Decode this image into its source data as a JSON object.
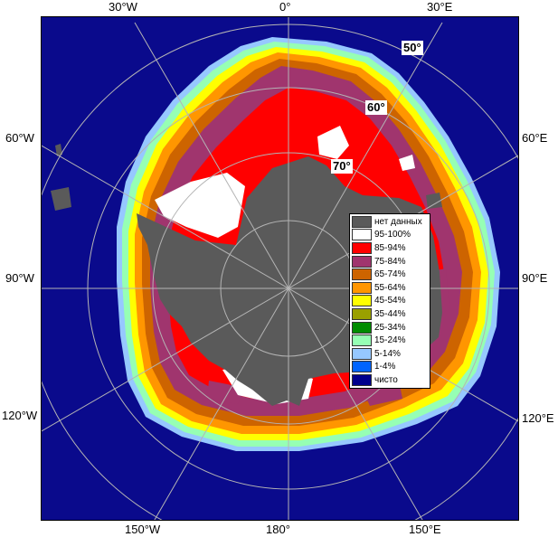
{
  "map": {
    "longitude_labels": {
      "top": [
        "30°W",
        "0°",
        "30°E"
      ],
      "left": [
        "60°W",
        "90°W",
        "120°W"
      ],
      "right": [
        "60°E",
        "90°E",
        "120°E"
      ],
      "bottom": [
        "150°W",
        "180°",
        "150°E"
      ]
    },
    "latitude_labels": [
      "50°",
      "60°",
      "70°"
    ],
    "colors": {
      "ocean": "#0a0a8c",
      "land": "#5a5a5a",
      "grid": "#b4b4b4"
    }
  },
  "legend": {
    "items": [
      {
        "label": "нет данных",
        "color": "#5a5a5a"
      },
      {
        "label": "95-100%",
        "color": "#ffffff"
      },
      {
        "label": "85-94%",
        "color": "#ff0000"
      },
      {
        "label": "75-84%",
        "color": "#a0356e"
      },
      {
        "label": "65-74%",
        "color": "#cd6400"
      },
      {
        "label": "55-64%",
        "color": "#ff9600"
      },
      {
        "label": "45-54%",
        "color": "#ffff00"
      },
      {
        "label": "35-44%",
        "color": "#9aa000"
      },
      {
        "label": "25-34%",
        "color": "#008c00"
      },
      {
        "label": "15-24%",
        "color": "#96ffb4"
      },
      {
        "label": "5-14%",
        "color": "#96c8ff"
      },
      {
        "label": "1-4%",
        "color": "#0064ff"
      },
      {
        "label": "чисто",
        "color": "#00008c"
      }
    ]
  }
}
